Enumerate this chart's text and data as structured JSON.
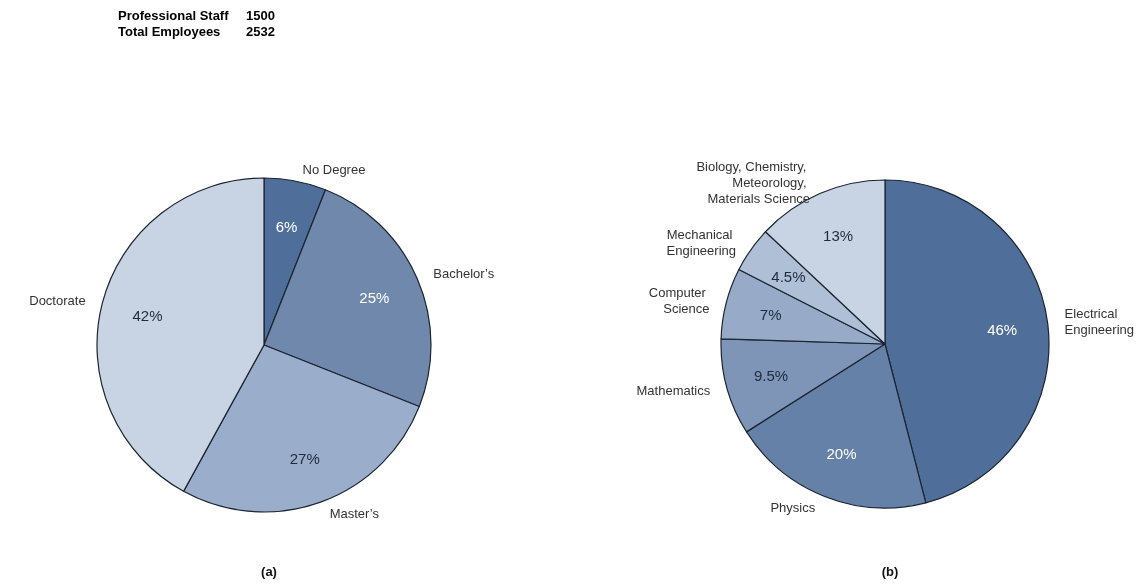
{
  "chart_data": [
    {
      "type": "other",
      "annotations": [
        "Professional Staff",
        "1500",
        "Total Employees",
        "2532"
      ]
    },
    {
      "type": "pie",
      "title": "(a)",
      "categories": [
        "No Degree",
        "Bachelor’s",
        "Master’s",
        "Doctorate"
      ],
      "values": [
        6,
        25,
        27,
        42
      ],
      "value_labels": [
        "6%",
        "25%",
        "27%",
        "42%"
      ],
      "colors": [
        "#4f6e99",
        "#6f88ab",
        "#9aaecb",
        "#c8d3e3"
      ]
    },
    {
      "type": "pie",
      "title": "(b)",
      "categories": [
        "Electrical Engineering",
        "Physics",
        "Mathematics",
        "Computer Science",
        "Mechanical Engineering",
        "Biology, Chemistry, Meteorology, Materials Science"
      ],
      "values": [
        46,
        20,
        9.5,
        7,
        4.5,
        13
      ],
      "value_labels": [
        "46%",
        "20%",
        "9.5%",
        "7%",
        "4.5%",
        "13%"
      ],
      "colors": [
        "#4f6e99",
        "#6681a8",
        "#7f95b8",
        "#97abc9",
        "#afbfd6",
        "#c8d3e3"
      ]
    }
  ]
}
